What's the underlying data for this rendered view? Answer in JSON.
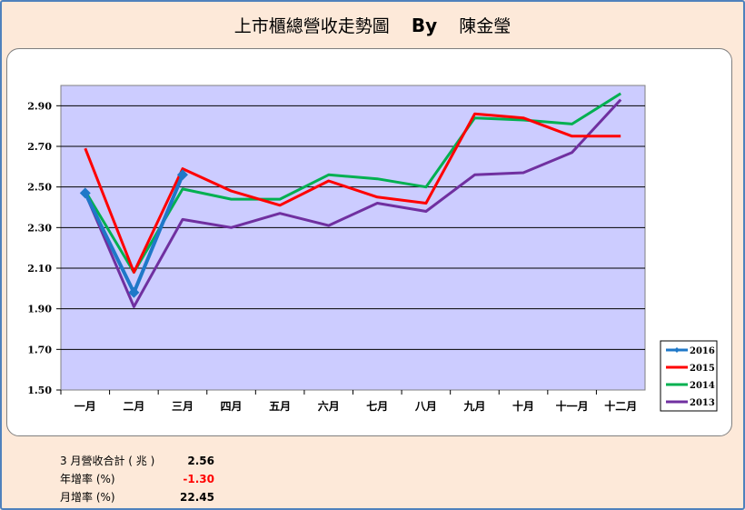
{
  "title": {
    "main": "上市櫃總營收走勢圖",
    "by_label": "By",
    "author": "陳金瑩"
  },
  "chart_data": {
    "type": "line",
    "categories": [
      "一月",
      "二月",
      "三月",
      "四月",
      "五月",
      "六月",
      "七月",
      "八月",
      "九月",
      "十月",
      "十一月",
      "十二月"
    ],
    "ylim": [
      1.5,
      3.0
    ],
    "yticks": [
      "1.50",
      "1.70",
      "1.90",
      "2.10",
      "2.30",
      "2.50",
      "2.70",
      "2.90"
    ],
    "ytick_values": [
      1.5,
      1.7,
      1.9,
      2.1,
      2.3,
      2.5,
      2.7,
      2.9
    ],
    "grid": true,
    "legend_position": "right-bottom",
    "series": [
      {
        "name": "2016",
        "color": "#1f78c8",
        "marker": "diamond",
        "values": [
          2.47,
          1.98,
          2.56,
          null,
          null,
          null,
          null,
          null,
          null,
          null,
          null,
          null
        ]
      },
      {
        "name": "2015",
        "color": "#ff0000",
        "marker": "none",
        "values": [
          2.69,
          2.08,
          2.59,
          2.48,
          2.41,
          2.53,
          2.45,
          2.42,
          2.86,
          2.84,
          2.75,
          2.75
        ]
      },
      {
        "name": "2014",
        "color": "#00b050",
        "marker": "none",
        "values": [
          2.48,
          2.08,
          2.49,
          2.44,
          2.44,
          2.56,
          2.54,
          2.5,
          2.84,
          2.83,
          2.81,
          2.96
        ]
      },
      {
        "name": "2013",
        "color": "#7030a0",
        "marker": "none",
        "values": [
          2.47,
          1.91,
          2.34,
          2.3,
          2.37,
          2.31,
          2.42,
          2.38,
          2.56,
          2.57,
          2.67,
          2.93
        ]
      }
    ]
  },
  "summary": {
    "revenue_label": "3 月營收合計 ( 兆 )",
    "revenue_value": "2.56",
    "yoy_label": "年增率 (%)",
    "yoy_value": "-1.30",
    "mom_label": "月增率 (%)",
    "mom_value": "22.45"
  }
}
